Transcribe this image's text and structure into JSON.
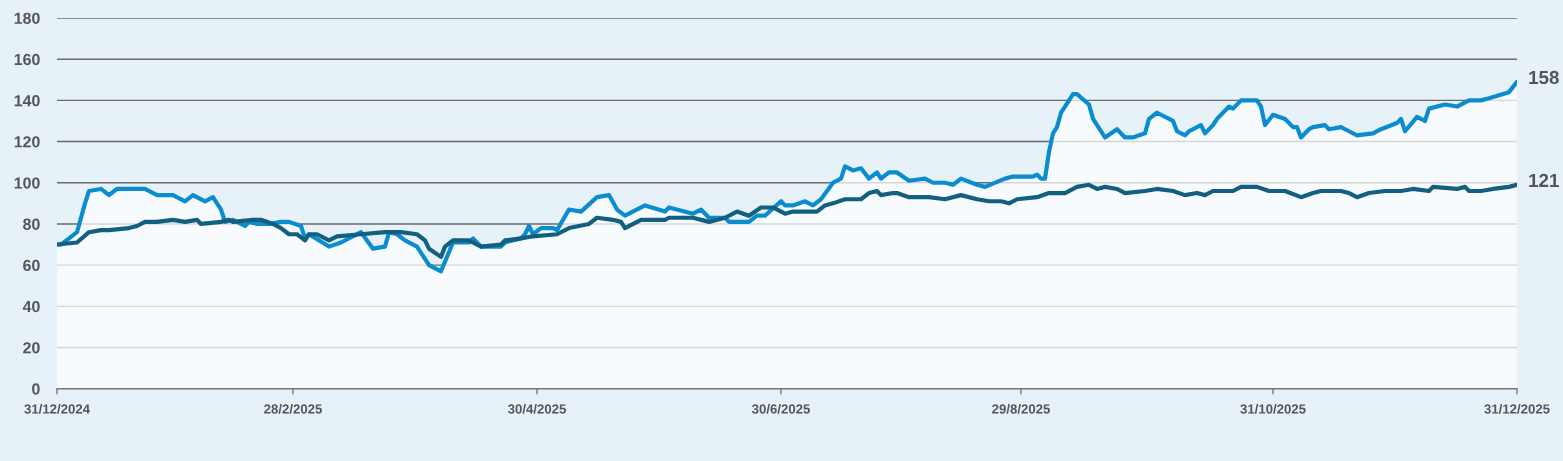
{
  "chart_data": {
    "type": "line",
    "xlim": [
      "2024-12-31",
      "2025-12-31"
    ],
    "xticks": [
      {
        "value": "2024-12-31",
        "label": "31/12/2024"
      },
      {
        "value": "2025-02-28",
        "label": "28/2/2025"
      },
      {
        "value": "2025-04-30",
        "label": "30/4/2025"
      },
      {
        "value": "2025-06-30",
        "label": "30/6/2025"
      },
      {
        "value": "2025-08-29",
        "label": "29/8/2025"
      },
      {
        "value": "2025-10-31",
        "label": "31/10/2025"
      },
      {
        "value": "2025-12-31",
        "label": "31/12/2025"
      }
    ],
    "ylim": [
      0,
      180
    ],
    "yticks": [
      0,
      20,
      40,
      60,
      80,
      100,
      120,
      140,
      160,
      180
    ],
    "grid": "y",
    "series": [
      {
        "type": "area",
        "color": "#0b8ccf",
        "x": [
          "2024-12-31",
          "2025-01-01",
          "2025-01-05",
          "2025-01-07",
          "2025-01-08",
          "2025-01-11",
          "2025-01-13",
          "2025-01-15",
          "2025-01-22",
          "2025-01-25",
          "2025-01-29",
          "2025-02-01",
          "2025-02-03",
          "2025-02-06",
          "2025-02-08",
          "2025-02-10",
          "2025-02-11",
          "2025-02-13",
          "2025-02-16",
          "2025-02-17",
          "2025-02-19",
          "2025-02-22",
          "2025-02-25",
          "2025-02-27",
          "2025-03-02",
          "2025-03-03",
          "2025-03-04",
          "2025-03-09",
          "2025-03-12",
          "2025-03-17",
          "2025-03-20",
          "2025-03-23",
          "2025-03-24",
          "2025-03-26",
          "2025-03-28",
          "2025-03-31",
          "2025-04-02",
          "2025-04-03",
          "2025-04-06",
          "2025-04-09",
          "2025-04-13",
          "2025-04-14",
          "2025-04-16",
          "2025-04-21",
          "2025-04-22",
          "2025-04-26",
          "2025-04-27",
          "2025-04-28",
          "2025-04-29",
          "2025-05-01",
          "2025-05-04",
          "2025-05-05",
          "2025-05-08",
          "2025-05-11",
          "2025-05-15",
          "2025-05-18",
          "2025-05-20",
          "2025-05-22",
          "2025-05-27",
          "2025-06-01",
          "2025-06-02",
          "2025-06-08",
          "2025-06-10",
          "2025-06-12",
          "2025-06-16",
          "2025-06-17",
          "2025-06-22",
          "2025-06-24",
          "2025-06-26",
          "2025-06-30",
          "2025-07-01",
          "2025-07-03",
          "2025-07-06",
          "2025-07-08",
          "2025-07-10",
          "2025-07-13",
          "2025-07-15",
          "2025-07-16",
          "2025-07-18",
          "2025-07-20",
          "2025-07-22",
          "2025-07-24",
          "2025-07-25",
          "2025-07-27",
          "2025-07-29",
          "2025-08-01",
          "2025-08-05",
          "2025-08-07",
          "2025-08-10",
          "2025-08-12",
          "2025-08-14",
          "2025-08-18",
          "2025-08-20",
          "2025-08-25",
          "2025-08-27",
          "2025-09-01",
          "2025-09-02",
          "2025-09-03",
          "2025-09-04",
          "2025-09-05",
          "2025-09-06",
          "2025-09-07",
          "2025-09-08",
          "2025-09-09",
          "2025-09-11",
          "2025-09-12",
          "2025-09-15",
          "2025-09-16",
          "2025-09-19",
          "2025-09-22",
          "2025-09-24",
          "2025-09-26",
          "2025-09-29",
          "2025-09-30",
          "2025-10-02",
          "2025-10-06",
          "2025-10-07",
          "2025-10-09",
          "2025-10-10",
          "2025-10-13",
          "2025-10-14",
          "2025-10-16",
          "2025-10-17",
          "2025-10-20",
          "2025-10-21",
          "2025-10-23",
          "2025-10-27",
          "2025-10-28",
          "2025-10-29",
          "2025-10-31",
          "2025-11-03",
          "2025-11-05",
          "2025-11-06",
          "2025-11-07",
          "2025-11-09",
          "2025-11-10",
          "2025-11-13",
          "2025-11-14",
          "2025-11-17",
          "2025-11-19",
          "2025-11-21",
          "2025-11-25",
          "2025-11-27",
          "2025-12-01",
          "2025-12-02",
          "2025-12-03",
          "2025-12-06",
          "2025-12-08",
          "2025-12-09",
          "2025-12-13",
          "2025-12-16",
          "2025-12-19",
          "2025-12-22",
          "2025-12-24",
          "2025-12-29",
          "2025-12-31"
        ],
        "values": [
          70,
          70,
          76,
          90,
          96,
          97,
          94,
          97,
          97,
          94,
          94,
          91,
          94,
          91,
          93,
          87,
          81,
          82,
          79,
          81,
          80,
          80,
          81,
          81,
          79,
          73,
          75,
          69,
          71,
          76,
          68,
          69,
          76,
          75,
          72,
          69,
          63,
          60,
          57,
          71,
          71,
          73,
          69,
          69,
          71,
          73,
          75,
          79,
          75,
          78,
          78,
          77,
          87,
          86,
          93,
          94,
          87,
          84,
          89,
          86,
          88,
          85,
          87,
          83,
          83,
          81,
          81,
          84,
          84,
          91,
          89,
          89,
          91,
          89,
          92,
          100,
          102,
          108,
          106,
          107,
          102,
          105,
          102,
          105,
          105,
          101,
          102,
          100,
          100,
          99,
          102,
          99,
          98,
          102,
          103,
          103,
          104,
          102,
          102,
          115,
          124,
          127,
          134,
          137,
          143,
          143,
          138,
          131,
          122,
          126,
          122,
          122,
          124,
          131,
          134,
          130,
          125,
          123,
          125,
          128,
          124,
          128,
          131,
          137,
          136,
          140,
          140,
          137,
          128,
          133,
          131,
          127,
          127,
          122,
          126,
          127,
          128,
          126,
          127,
          125,
          123,
          124,
          126,
          129,
          131,
          125,
          132,
          130,
          136,
          138,
          137,
          140,
          140,
          141,
          144,
          149
        ]
      },
      {
        "color": "#135f80",
        "x": [
          "2024-12-31",
          "2025-01-05",
          "2025-01-08",
          "2025-01-11",
          "2025-01-13",
          "2025-01-18",
          "2025-01-20",
          "2025-01-22",
          "2025-01-25",
          "2025-01-29",
          "2025-02-01",
          "2025-02-04",
          "2025-02-05",
          "2025-02-10",
          "2025-02-12",
          "2025-02-13",
          "2025-02-18",
          "2025-02-20",
          "2025-02-23",
          "2025-02-25",
          "2025-02-27",
          "2025-03-01",
          "2025-03-03",
          "2025-03-04",
          "2025-03-06",
          "2025-03-09",
          "2025-03-11",
          "2025-03-17",
          "2025-03-23",
          "2025-03-27",
          "2025-03-31",
          "2025-04-02",
          "2025-04-03",
          "2025-04-06",
          "2025-04-07",
          "2025-04-09",
          "2025-04-13",
          "2025-04-16",
          "2025-04-21",
          "2025-04-22",
          "2025-04-26",
          "2025-04-29",
          "2025-05-05",
          "2025-05-08",
          "2025-05-13",
          "2025-05-15",
          "2025-05-19",
          "2025-05-21",
          "2025-05-22",
          "2025-05-26",
          "2025-06-01",
          "2025-06-02",
          "2025-06-08",
          "2025-06-12",
          "2025-06-16",
          "2025-06-19",
          "2025-06-22",
          "2025-06-25",
          "2025-06-28",
          "2025-07-01",
          "2025-07-03",
          "2025-07-09",
          "2025-07-11",
          "2025-07-13",
          "2025-07-16",
          "2025-07-18",
          "2025-07-20",
          "2025-07-22",
          "2025-07-24",
          "2025-07-25",
          "2025-07-28",
          "2025-07-29",
          "2025-08-01",
          "2025-08-06",
          "2025-08-10",
          "2025-08-14",
          "2025-08-18",
          "2025-08-21",
          "2025-08-24",
          "2025-08-26",
          "2025-08-28",
          "2025-09-02",
          "2025-09-05",
          "2025-09-09",
          "2025-09-12",
          "2025-09-15",
          "2025-09-17",
          "2025-09-19",
          "2025-09-22",
          "2025-09-24",
          "2025-09-29",
          "2025-10-02",
          "2025-10-06",
          "2025-10-09",
          "2025-10-12",
          "2025-10-14",
          "2025-10-16",
          "2025-10-21",
          "2025-10-23",
          "2025-10-27",
          "2025-10-30",
          "2025-11-03",
          "2025-11-07",
          "2025-11-10",
          "2025-11-12",
          "2025-11-17",
          "2025-11-19",
          "2025-11-21",
          "2025-11-24",
          "2025-11-28",
          "2025-12-02",
          "2025-12-05",
          "2025-12-09",
          "2025-12-10",
          "2025-12-16",
          "2025-12-18",
          "2025-12-19",
          "2025-12-22",
          "2025-12-25",
          "2025-12-29",
          "2025-12-31"
        ],
        "values": [
          70,
          71,
          76,
          77,
          77,
          78,
          79,
          81,
          81,
          82,
          81,
          82,
          80,
          81,
          82,
          81,
          82,
          82,
          80,
          78,
          75,
          75,
          72,
          75,
          75,
          72,
          74,
          75,
          76,
          76,
          75,
          72,
          68,
          64,
          69,
          72,
          72,
          69,
          70,
          72,
          73,
          74,
          75,
          78,
          80,
          83,
          82,
          81,
          78,
          82,
          82,
          83,
          83,
          81,
          83,
          86,
          84,
          88,
          88,
          85,
          86,
          86,
          89,
          90,
          92,
          92,
          92,
          95,
          96,
          94,
          95,
          95,
          93,
          93,
          92,
          94,
          92,
          91,
          91,
          90,
          92,
          93,
          95,
          95,
          98,
          99,
          97,
          98,
          97,
          95,
          96,
          97,
          96,
          94,
          95,
          94,
          96,
          96,
          98,
          98,
          96,
          96,
          93,
          95,
          96,
          96,
          95,
          93,
          95,
          96,
          96,
          97,
          96,
          98,
          97,
          98,
          96,
          96,
          97,
          98,
          99
        ]
      }
    ],
    "annotations": [
      {
        "text": "158",
        "x": "2025-12-31",
        "y": 149
      },
      {
        "text": "121",
        "x": "2025-12-31",
        "y": 99
      }
    ]
  }
}
